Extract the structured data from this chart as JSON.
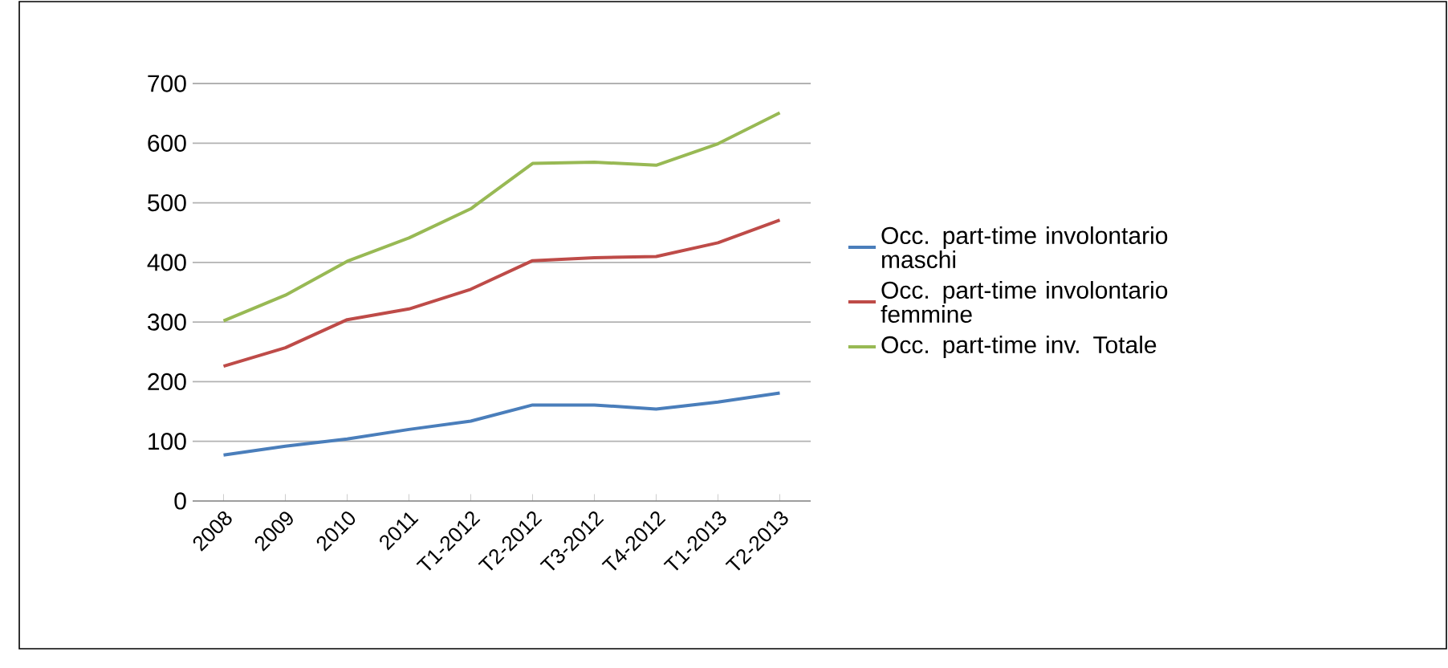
{
  "chart_data": {
    "type": "line",
    "categories": [
      "2008",
      "2009",
      "2010",
      "2011",
      "T1-2012",
      "T2-2012",
      "T3-2012",
      "T4-2012",
      "T1-2013",
      "T2-2013"
    ],
    "series": [
      {
        "name": "Occ. part-time involontario maschi",
        "color": "#4a7ebb",
        "values": [
          77,
          92,
          104,
          120,
          134,
          161,
          161,
          154,
          166,
          181
        ]
      },
      {
        "name": "Occ. part-time involontario femmine",
        "color": "#be4b48",
        "values": [
          226,
          257,
          304,
          322,
          355,
          403,
          408,
          410,
          433,
          471
        ]
      },
      {
        "name": "Occ. part-time inv. Totale",
        "color": "#98b954",
        "values": [
          302,
          345,
          402,
          441,
          490,
          566,
          568,
          563,
          599,
          651
        ]
      }
    ],
    "ylim": [
      0,
      700
    ],
    "yticks": [
      0,
      100,
      200,
      300,
      400,
      500,
      600,
      700
    ],
    "grid": "y",
    "legend": "right",
    "marker": "none",
    "line_style": "solid"
  }
}
